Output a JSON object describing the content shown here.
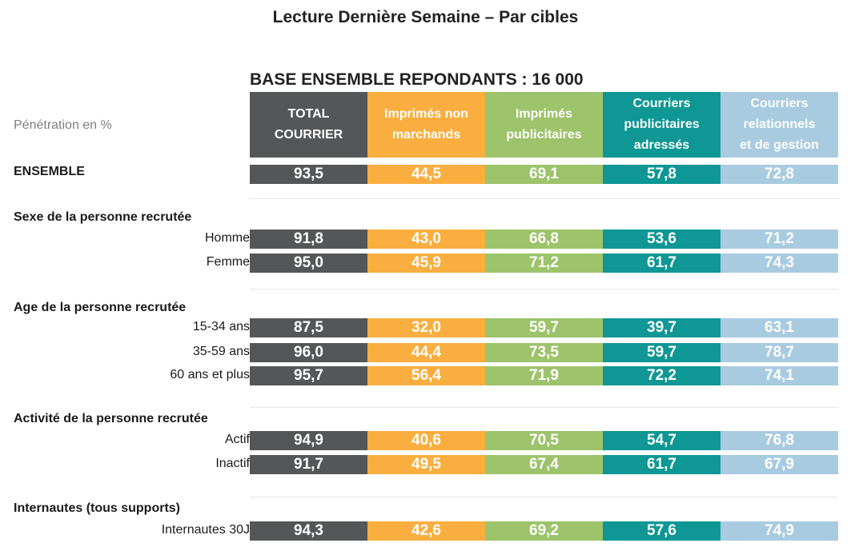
{
  "title": "Lecture Dernière Semaine – Par cibles",
  "base_label": "BASE ENSEMBLE REPONDANTS : 16 000",
  "unit_label": "Pénétration en %",
  "colors": {
    "total": "#555657",
    "non_marchands": "#f9ae3f",
    "publicitaires": "#9dc36b",
    "adresses": "#0e9794",
    "relationnels": "#a8cbe0"
  },
  "chart_data": {
    "type": "table",
    "title": "Lecture Dernière Semaine – Par cibles",
    "columns": [
      {
        "key": "total",
        "label": "TOTAL\nCOURRIER"
      },
      {
        "key": "non_marchands",
        "label": "Imprimés non\nmarchands"
      },
      {
        "key": "publicitaires",
        "label": "Imprimés\npublicitaires"
      },
      {
        "key": "adresses",
        "label": "Courriers\npublicitaires\nadressés"
      },
      {
        "key": "relationnels",
        "label": "Courriers\nrelationnels\net de gestion"
      }
    ],
    "ensemble": {
      "label": "ENSEMBLE",
      "values": [
        "93,5",
        "44,5",
        "69,1",
        "57,8",
        "72,8"
      ]
    },
    "groups": [
      {
        "title": "Sexe de la personne recrutée",
        "rows": [
          {
            "label": "Homme",
            "values": [
              "91,8",
              "43,0",
              "66,8",
              "53,6",
              "71,2"
            ]
          },
          {
            "label": "Femme",
            "values": [
              "95,0",
              "45,9",
              "71,2",
              "61,7",
              "74,3"
            ]
          }
        ]
      },
      {
        "title": "Age de la personne recrutée",
        "rows": [
          {
            "label": "15-34 ans",
            "values": [
              "87,5",
              "32,0",
              "59,7",
              "39,7",
              "63,1"
            ]
          },
          {
            "label": "35-59 ans",
            "values": [
              "96,0",
              "44,4",
              "73,5",
              "59,7",
              "78,7"
            ]
          },
          {
            "label": "60 ans et plus",
            "values": [
              "95,7",
              "56,4",
              "71,9",
              "72,2",
              "74,1"
            ]
          }
        ]
      },
      {
        "title": "Activité de la personne recrutée",
        "rows": [
          {
            "label": "Actif",
            "values": [
              "94,9",
              "40,6",
              "70,5",
              "54,7",
              "76,8"
            ]
          },
          {
            "label": "Inactif",
            "values": [
              "91,7",
              "49,5",
              "67,4",
              "61,7",
              "67,9"
            ]
          }
        ]
      },
      {
        "title": "Internautes (tous supports)",
        "rows": [
          {
            "label": "Internautes 30J",
            "values": [
              "94,3",
              "42,6",
              "69,2",
              "57,6",
              "74,9"
            ]
          }
        ]
      }
    ]
  }
}
